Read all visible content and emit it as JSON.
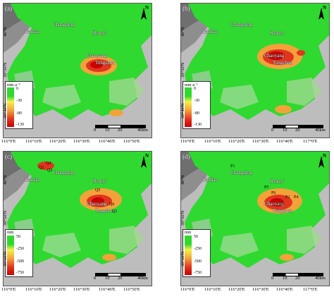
{
  "panels": [
    {
      "tag": "(a)",
      "legend": {
        "unit": "mm·a⁻¹",
        "ticks": [
          "0",
          "-30",
          "-80",
          "-130"
        ]
      }
    },
    {
      "tag": "(b)",
      "legend": {
        "unit": "mm·a⁻¹",
        "ticks": [
          "0",
          "-30",
          "-80",
          "-130"
        ]
      }
    },
    {
      "tag": "(c)",
      "legend": {
        "unit": "mm",
        "ticks": [
          "50",
          "-250",
          "-500",
          "-750"
        ]
      }
    },
    {
      "tag": "(d)",
      "legend": {
        "unit": "mm",
        "ticks": [
          "50",
          "-250",
          "-500",
          "-750"
        ]
      }
    }
  ],
  "places": {
    "haidian": "Haidian",
    "changping": "Changping",
    "shunyi": "Shunyi",
    "chaoyang": "Chaoyang",
    "tongzhou": "Tongzhou"
  },
  "points_c": {
    "q1": "Q1",
    "q2": "Q2",
    "q3": "Q3",
    "q4": "Q4",
    "q5": "Q5",
    "q6": "Q6"
  },
  "points_d": {
    "p1": "P1",
    "p2": "P2",
    "p3": "P3",
    "p4": "P4",
    "p5": "P5",
    "p6": "P6"
  },
  "north_label": "N",
  "scale": {
    "s0": "0",
    "s1": "10",
    "s2": "20",
    "s3": "40km"
  },
  "xticks": {
    "x1": "116°0'E",
    "x2": "116°10'E",
    "x3": "116°20'E",
    "x4": "116°30'E",
    "x5": "116°40'E",
    "x6": "116°50'E",
    "x7": "117°0'E"
  },
  "yticks": {
    "y1": "40°N",
    "y2": "39°50'N",
    "y3": "39°40'N",
    "y4": "39°30'N"
  },
  "colors": {
    "stable": "#2fd92f",
    "background": "#b9b9b9",
    "strong": "#c80000"
  }
}
